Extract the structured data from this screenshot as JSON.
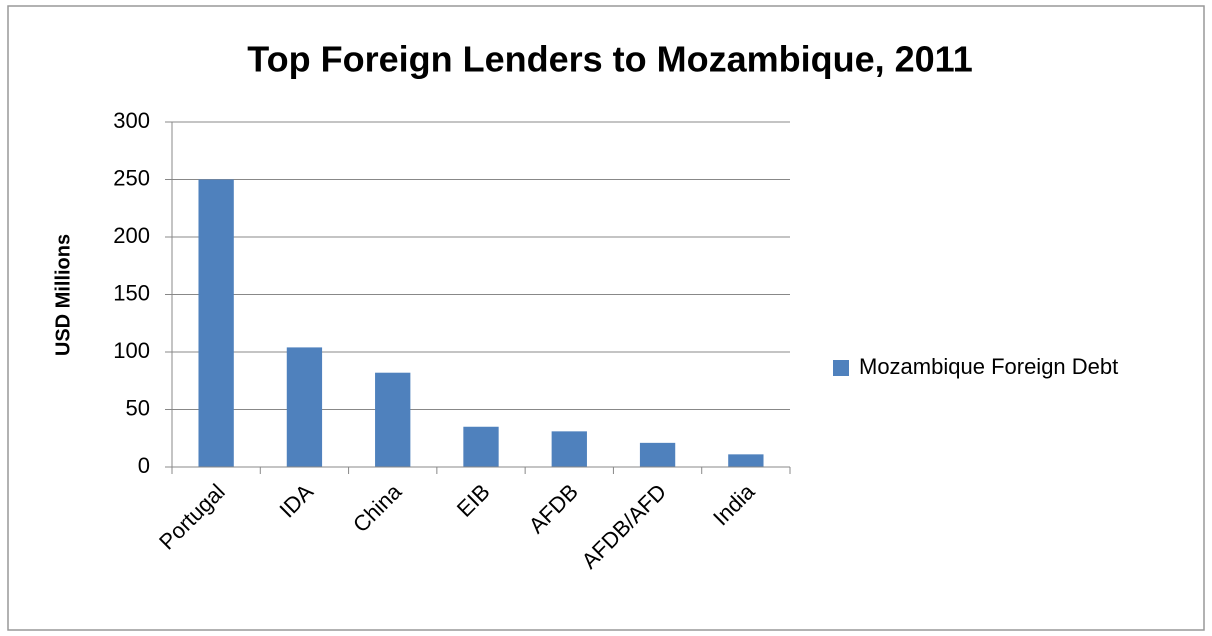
{
  "chart_data": {
    "type": "bar",
    "title": "Top Foreign Lenders to Mozambique, 2011",
    "y_label": "USD Millions",
    "categories": [
      "Portugal",
      "IDA",
      "China",
      "EIB",
      "AFDB",
      "AFDB/AFD",
      "India"
    ],
    "series": [
      {
        "name": "Mozambique Foreign Debt",
        "color": "#4f81bd",
        "values": [
          250,
          104,
          82,
          35,
          31,
          21,
          11
        ]
      }
    ],
    "ylim": [
      0,
      300
    ],
    "yticks": [
      0,
      50,
      100,
      150,
      200,
      250,
      300
    ],
    "grid": true,
    "legend": "right"
  }
}
